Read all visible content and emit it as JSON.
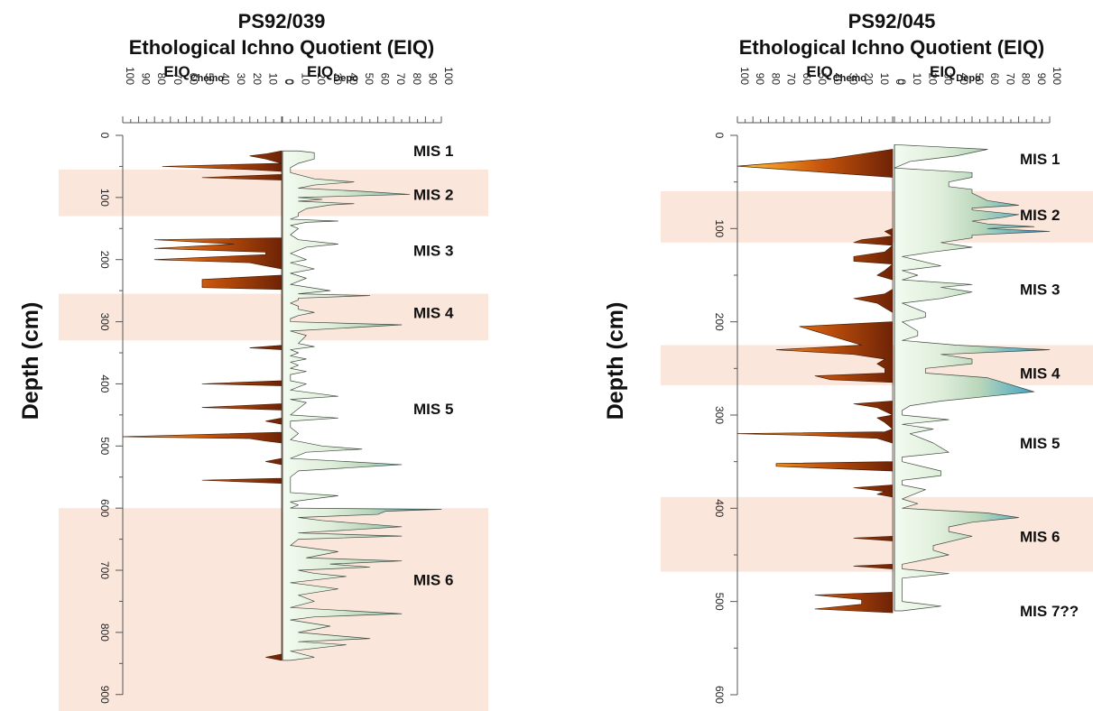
{
  "chart_data": [
    {
      "type": "area",
      "title": "PS92/039",
      "subtitle": "Ethological Ichno Quotient (EIQ)",
      "left_label": {
        "main": "EIQ",
        "sub": "Chemo"
      },
      "right_label": {
        "main": "EIQ",
        "sub": "Depo"
      },
      "ylabel": "Depth (cm)",
      "xlim": [
        0,
        100
      ],
      "ylim": [
        0,
        920
      ],
      "x_ticks": [
        "100",
        "90",
        "80",
        "70",
        "60",
        "50",
        "40",
        "30",
        "20",
        "10",
        "0",
        "0",
        "10",
        "20",
        "30",
        "40",
        "50",
        "60",
        "70",
        "80",
        "90",
        "100"
      ],
      "y_ticks": [
        "0",
        "100",
        "200",
        "300",
        "400",
        "500",
        "600",
        "700",
        "800",
        "900"
      ],
      "stages": [
        {
          "label": "MIS 1",
          "depth": 25,
          "shade": false
        },
        {
          "label": "MIS 2",
          "depth": 95,
          "shade": true,
          "from": 55,
          "to": 130
        },
        {
          "label": "MIS 3",
          "depth": 185,
          "shade": false
        },
        {
          "label": "MIS 4",
          "depth": 285,
          "shade": true,
          "from": 255,
          "to": 330
        },
        {
          "label": "MIS 5",
          "depth": 440,
          "shade": false
        },
        {
          "label": "MIS 6",
          "depth": 715,
          "shade": true,
          "from": 600,
          "to": 930
        }
      ],
      "series": [
        {
          "name": "EIQ Chemo",
          "depth": [
            25,
            30,
            33,
            38,
            45,
            50,
            55,
            58,
            63,
            68,
            72,
            75,
            80,
            85,
            88,
            165,
            168,
            175,
            182,
            188,
            192,
            200,
            205,
            210,
            215,
            225,
            232,
            240,
            245,
            248,
            338,
            342,
            345,
            395,
            400,
            403,
            432,
            438,
            442,
            455,
            460,
            465,
            478,
            485,
            488,
            492,
            495,
            520,
            525,
            530,
            552,
            555,
            560,
            835,
            840,
            845
          ],
          "value": [
            0,
            10,
            20,
            10,
            0,
            75,
            20,
            0,
            0,
            50,
            0,
            0,
            0,
            0,
            0,
            0,
            80,
            30,
            80,
            10,
            10,
            80,
            20,
            10,
            0,
            0,
            50,
            50,
            50,
            0,
            0,
            20,
            0,
            0,
            50,
            0,
            0,
            50,
            0,
            0,
            10,
            0,
            0,
            100,
            20,
            10,
            0,
            0,
            10,
            0,
            0,
            50,
            0,
            0,
            10,
            0
          ]
        },
        {
          "name": "EIQ Depo",
          "depth": [
            25,
            28,
            38,
            45,
            52,
            60,
            70,
            75,
            80,
            85,
            90,
            95,
            100,
            103,
            106,
            110,
            112,
            118,
            125,
            130,
            135,
            138,
            140,
            145,
            150,
            160,
            168,
            175,
            180,
            190,
            200,
            205,
            215,
            222,
            230,
            240,
            250,
            255,
            258,
            262,
            265,
            270,
            275,
            280,
            285,
            290,
            295,
            300,
            305,
            315,
            322,
            335,
            340,
            345,
            350,
            355,
            360,
            365,
            370,
            375,
            380,
            385,
            395,
            400,
            410,
            420,
            425,
            430,
            440,
            450,
            455,
            460,
            470,
            480,
            490,
            500,
            505,
            510,
            520,
            530,
            540,
            550,
            560,
            575,
            580,
            590,
            595,
            600,
            602,
            605,
            610,
            615,
            620,
            630,
            640,
            645,
            650,
            660,
            670,
            680,
            685,
            690,
            695,
            700,
            705,
            710,
            720,
            730,
            740,
            750,
            760,
            770,
            775,
            780,
            790,
            800,
            810,
            815,
            820,
            830,
            840,
            845
          ],
          "value": [
            10,
            20,
            20,
            10,
            5,
            5,
            20,
            45,
            20,
            10,
            50,
            80,
            10,
            25,
            10,
            45,
            30,
            15,
            10,
            10,
            5,
            35,
            15,
            5,
            10,
            5,
            10,
            35,
            15,
            5,
            15,
            5,
            20,
            5,
            15,
            5,
            30,
            10,
            55,
            10,
            10,
            5,
            10,
            10,
            20,
            10,
            5,
            5,
            75,
            5,
            15,
            10,
            20,
            5,
            10,
            5,
            15,
            5,
            10,
            5,
            15,
            5,
            5,
            15,
            5,
            35,
            5,
            15,
            10,
            5,
            35,
            5,
            5,
            10,
            5,
            25,
            50,
            15,
            5,
            75,
            10,
            5,
            5,
            5,
            35,
            5,
            10,
            5,
            100,
            65,
            60,
            10,
            25,
            75,
            10,
            75,
            10,
            5,
            35,
            15,
            75,
            30,
            55,
            10,
            20,
            40,
            5,
            35,
            10,
            20,
            5,
            75,
            20,
            5,
            30,
            10,
            55,
            10,
            40,
            5,
            20,
            5
          ]
        }
      ]
    },
    {
      "type": "area",
      "title": "PS92/045",
      "subtitle": "Ethological Ichno Quotient (EIQ)",
      "left_label": {
        "main": "EIQ",
        "sub": "Chemo"
      },
      "right_label": {
        "main": "EIQ",
        "sub": "Depo"
      },
      "ylabel": "Depth (cm)",
      "xlim": [
        0,
        100
      ],
      "ylim": [
        0,
        600
      ],
      "x_ticks": [
        "100",
        "90",
        "80",
        "70",
        "60",
        "50",
        "40",
        "30",
        "20",
        "10",
        "0",
        "0",
        "10",
        "20",
        "30",
        "40",
        "50",
        "60",
        "70",
        "80",
        "90",
        "100"
      ],
      "y_ticks": [
        "0",
        "100",
        "200",
        "300",
        "400",
        "500",
        "600"
      ],
      "stages": [
        {
          "label": "MIS 1",
          "depth": 25,
          "shade": false
        },
        {
          "label": "MIS 2",
          "depth": 85,
          "shade": true,
          "from": 60,
          "to": 115
        },
        {
          "label": "MIS 3",
          "depth": 165,
          "shade": false
        },
        {
          "label": "MIS 4",
          "depth": 255,
          "shade": true,
          "from": 225,
          "to": 268
        },
        {
          "label": "MIS 5",
          "depth": 330,
          "shade": false
        },
        {
          "label": "MIS 6",
          "depth": 430,
          "shade": true,
          "from": 388,
          "to": 468
        },
        {
          "label": "MIS 7??",
          "depth": 510,
          "shade": false
        }
      ],
      "series": [
        {
          "name": "EIQ Chemo",
          "depth": [
            15,
            20,
            25,
            33,
            45,
            100,
            103,
            108,
            112,
            115,
            118,
            125,
            130,
            135,
            138,
            145,
            150,
            155,
            165,
            170,
            175,
            180,
            185,
            190,
            200,
            205,
            210,
            215,
            220,
            225,
            230,
            235,
            240,
            245,
            250,
            255,
            258,
            262,
            265,
            285,
            288,
            292,
            300,
            303,
            308,
            315,
            318,
            320,
            322,
            325,
            330,
            350,
            352,
            355,
            360,
            375,
            378,
            382,
            385,
            388,
            430,
            432,
            435,
            460,
            462,
            465,
            490,
            493,
            498,
            503,
            508,
            512
          ],
          "value": [
            0,
            20,
            40,
            100,
            0,
            0,
            5,
            0,
            20,
            25,
            0,
            5,
            25,
            25,
            0,
            5,
            10,
            0,
            0,
            5,
            25,
            10,
            5,
            0,
            0,
            60,
            50,
            40,
            30,
            20,
            75,
            25,
            5,
            10,
            5,
            5,
            50,
            40,
            0,
            0,
            25,
            10,
            0,
            10,
            5,
            0,
            5,
            100,
            50,
            10,
            0,
            0,
            75,
            75,
            0,
            0,
            25,
            5,
            10,
            0,
            0,
            25,
            0,
            0,
            25,
            0,
            0,
            50,
            20,
            20,
            50,
            0
          ]
        },
        {
          "name": "EIQ Depo",
          "depth": [
            10,
            15,
            22,
            28,
            35,
            40,
            45,
            50,
            55,
            58,
            62,
            70,
            75,
            78,
            80,
            85,
            88,
            92,
            95,
            98,
            100,
            103,
            107,
            110,
            115,
            120,
            125,
            130,
            140,
            145,
            150,
            155,
            160,
            163,
            168,
            175,
            180,
            190,
            195,
            200,
            210,
            215,
            220,
            225,
            230,
            235,
            240,
            245,
            250,
            255,
            260,
            270,
            275,
            280,
            285,
            290,
            295,
            300,
            305,
            310,
            315,
            320,
            330,
            340,
            345,
            350,
            360,
            365,
            370,
            375,
            380,
            390,
            395,
            400,
            405,
            410,
            415,
            420,
            425,
            430,
            440,
            445,
            450,
            460,
            465,
            470,
            475,
            500,
            505,
            510
          ],
          "value": [
            0,
            60,
            40,
            10,
            0,
            50,
            50,
            35,
            35,
            50,
            50,
            60,
            80,
            50,
            50,
            80,
            70,
            50,
            60,
            90,
            60,
            100,
            50,
            50,
            30,
            50,
            25,
            5,
            30,
            5,
            15,
            5,
            50,
            30,
            50,
            30,
            5,
            20,
            20,
            5,
            15,
            15,
            5,
            40,
            100,
            30,
            50,
            50,
            20,
            20,
            60,
            80,
            90,
            60,
            30,
            10,
            5,
            5,
            35,
            5,
            25,
            10,
            25,
            35,
            5,
            5,
            30,
            30,
            5,
            5,
            20,
            5,
            15,
            5,
            60,
            80,
            50,
            35,
            35,
            50,
            25,
            25,
            35,
            5,
            5,
            35,
            5,
            5,
            30,
            5
          ]
        }
      ]
    }
  ]
}
